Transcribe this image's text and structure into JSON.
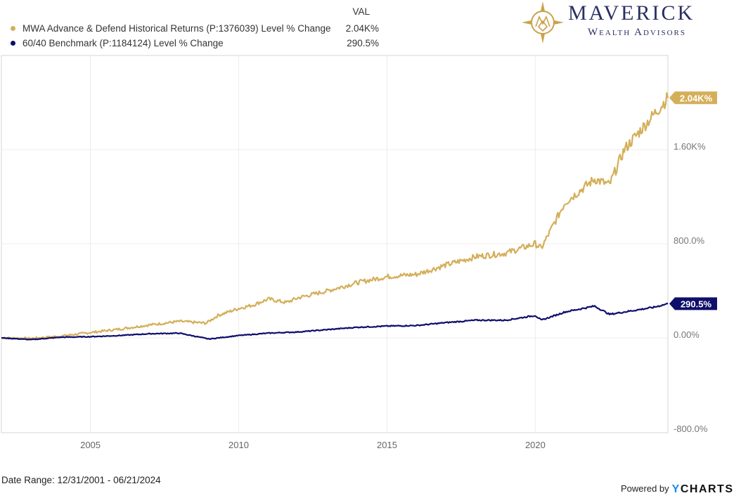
{
  "legend": {
    "val_header": "VAL",
    "items": [
      {
        "label": "MWA Advance & Defend Historical Returns (P:1376039) Level % Change",
        "value": "2.04K%",
        "color": "#d4af5a"
      },
      {
        "label": "60/40 Benchmark (P:1184124) Level % Change",
        "value": "290.5%",
        "color": "#0e0e6b"
      }
    ]
  },
  "logo": {
    "brand": "MAVERICK",
    "sub": "Wealth Advisors",
    "icon": "compass-icon"
  },
  "footer": {
    "date_range": "Date Range: 12/31/2001 - 06/21/2024",
    "powered_by": "Powered by",
    "ycharts_y": "Y",
    "ycharts_rest": "CHARTS"
  },
  "chart_data": {
    "type": "line",
    "title": "",
    "xlabel": "",
    "ylabel": "",
    "x_range": [
      2002.0,
      2024.47
    ],
    "ylim": [
      -800,
      2000
    ],
    "y_ticks": [
      {
        "value": -800,
        "label": "-800.0%"
      },
      {
        "value": 0,
        "label": "0.00%"
      },
      {
        "value": 800,
        "label": "800.0%"
      },
      {
        "value": 1600,
        "label": "1.60K%"
      }
    ],
    "x_ticks": [
      {
        "value": 2005,
        "label": "2005"
      },
      {
        "value": 2010,
        "label": "2010"
      },
      {
        "value": 2015,
        "label": "2015"
      },
      {
        "value": 2020,
        "label": "2020"
      }
    ],
    "grid": true,
    "legend_position": "top-left",
    "series": [
      {
        "name": "MWA Advance & Defend Historical Returns (P:1376039) Level % Change",
        "color": "#d4af5a",
        "end_label": "2.04K%",
        "x": [
          2002.0,
          2003.0,
          2004.0,
          2005.0,
          2006.0,
          2007.0,
          2008.0,
          2008.9,
          2009.3,
          2010.0,
          2010.5,
          2011.0,
          2011.6,
          2012.0,
          2013.0,
          2014.0,
          2015.0,
          2016.0,
          2017.0,
          2018.0,
          2019.0,
          2020.0,
          2020.2,
          2021.0,
          2022.0,
          2022.5,
          2023.0,
          2024.0,
          2024.47
        ],
        "values": [
          0,
          -5,
          15,
          45,
          75,
          110,
          140,
          125,
          190,
          250,
          280,
          330,
          300,
          340,
          400,
          470,
          520,
          540,
          620,
          690,
          720,
          800,
          760,
          1150,
          1350,
          1300,
          1600,
          1900,
          2040
        ]
      },
      {
        "name": "60/40 Benchmark (P:1184124) Level % Change",
        "color": "#0e0e6b",
        "end_label": "290.5%",
        "x": [
          2002.0,
          2003.0,
          2004.0,
          2005.0,
          2006.0,
          2007.0,
          2008.0,
          2009.0,
          2010.0,
          2011.0,
          2012.0,
          2013.0,
          2014.0,
          2015.0,
          2016.0,
          2017.0,
          2018.0,
          2019.0,
          2020.0,
          2020.2,
          2021.0,
          2022.0,
          2022.5,
          2023.0,
          2024.0,
          2024.47
        ],
        "values": [
          0,
          -15,
          5,
          10,
          20,
          35,
          40,
          -10,
          20,
          40,
          50,
          70,
          90,
          100,
          105,
          130,
          150,
          150,
          190,
          150,
          220,
          270,
          200,
          220,
          260,
          290.5
        ]
      }
    ]
  }
}
